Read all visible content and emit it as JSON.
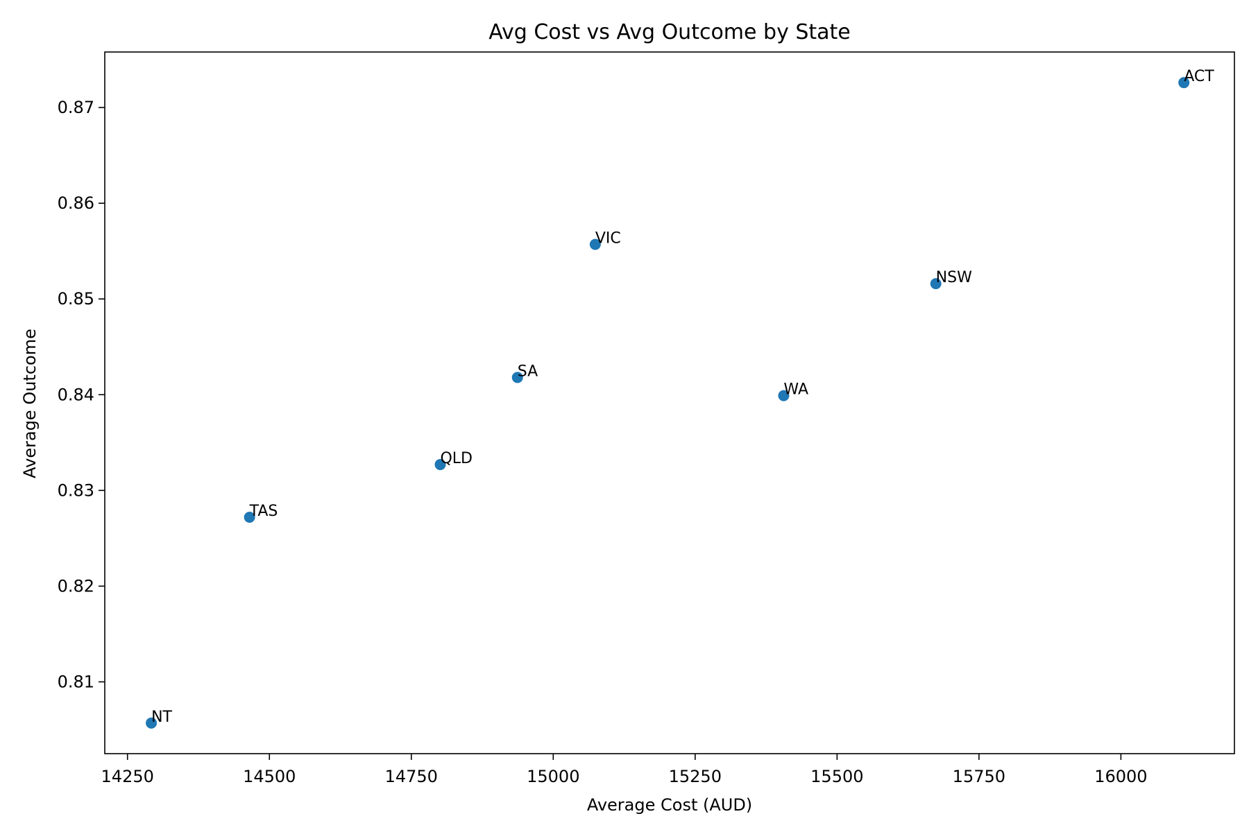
{
  "chart_data": {
    "type": "scatter",
    "title": "Avg Cost vs Avg Outcome by State",
    "xlabel": "Average Cost (AUD)",
    "ylabel": "Average Outcome",
    "xlim": [
      14210,
      16200
    ],
    "ylim": [
      0.8025,
      0.8758
    ],
    "xticks": [
      14250,
      14500,
      14750,
      15000,
      15250,
      15500,
      15750,
      16000
    ],
    "yticks": [
      0.81,
      0.82,
      0.83,
      0.84,
      0.85,
      0.86,
      0.87
    ],
    "grid": false,
    "marker_color": "#1f77b4",
    "points": [
      {
        "label": "NT",
        "x": 14292,
        "y": 0.8057
      },
      {
        "label": "TAS",
        "x": 14465,
        "y": 0.8272
      },
      {
        "label": "QLD",
        "x": 14801,
        "y": 0.8327
      },
      {
        "label": "SA",
        "x": 14937,
        "y": 0.8418
      },
      {
        "label": "VIC",
        "x": 15074,
        "y": 0.8557
      },
      {
        "label": "WA",
        "x": 15406,
        "y": 0.8399
      },
      {
        "label": "NSW",
        "x": 15674,
        "y": 0.8516
      },
      {
        "label": "ACT",
        "x": 16111,
        "y": 0.8726
      }
    ]
  }
}
